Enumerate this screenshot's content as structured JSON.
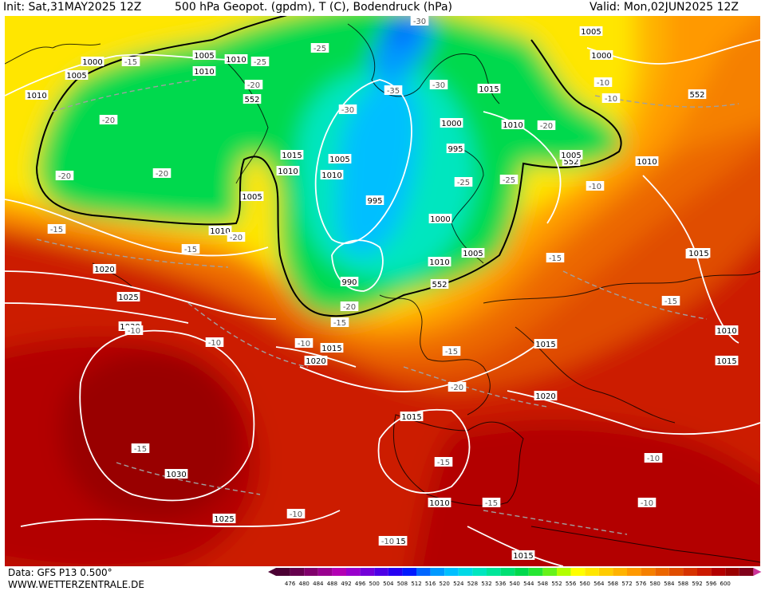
{
  "header": {
    "init": "Init: Sat,31MAY2025 12Z",
    "title": "500 hPa Geopot. (gpdm), T (C), Bodendruck (hPa)",
    "valid": "Valid: Mon,02JUN2025 12Z"
  },
  "footer": {
    "data_source": "Data: GFS P13 0.500°",
    "website": "WWW.WETTERZENTRALE.DE"
  },
  "colors": {
    "scale": [
      "#4b0033",
      "#66004d",
      "#80006b",
      "#99008f",
      "#b300b3",
      "#9900cc",
      "#7300d9",
      "#4d00e6",
      "#2600f2",
      "#0019ff",
      "#0066ff",
      "#0099ff",
      "#00bfff",
      "#00d9e6",
      "#00e6bf",
      "#00e699",
      "#00e073",
      "#00d94d",
      "#26e633",
      "#66f21a",
      "#b3ff00",
      "#ffff00",
      "#ffe600",
      "#ffcc00",
      "#ffb300",
      "#ff9900",
      "#f58000",
      "#eb6600",
      "#e04d00",
      "#d63300",
      "#cc1a00",
      "#b30000",
      "#990000",
      "#80001a"
    ],
    "isobar": "#ffffff",
    "temperature_line": "#a0a0a0",
    "geopotential_552_line": "#000000"
  },
  "scale_labels": [
    "476",
    "480",
    "484",
    "488",
    "492",
    "496",
    "500",
    "504",
    "508",
    "512",
    "516",
    "520",
    "524",
    "528",
    "532",
    "536",
    "540",
    "544",
    "548",
    "552",
    "556",
    "560",
    "564",
    "568",
    "572",
    "576",
    "580",
    "584",
    "588",
    "592",
    "596",
    "600"
  ],
  "pressure_labels": [
    "1005",
    "1000",
    "1005",
    "1010",
    "1010",
    "1010",
    "552",
    "1015",
    "1010",
    "1005",
    "1000",
    "552",
    "1005",
    "1010",
    "1020",
    "1025",
    "1030",
    "1015",
    "1020",
    "1030",
    "1025",
    "1015",
    "995",
    "990",
    "1000",
    "1010",
    "552",
    "1005",
    "1015",
    "1010",
    "1015",
    "1020",
    "1015",
    "1005",
    "1000",
    "995",
    "1010",
    "1005",
    "552",
    "1010",
    "1015",
    "1010",
    "1015",
    "1015",
    "1015",
    "1010"
  ],
  "temperature_labels": [
    "-30",
    "-25",
    "-15",
    "-25",
    "-20",
    "-20",
    "-20",
    "-30",
    "-35",
    "-30",
    "-25",
    "-20",
    "-20",
    "-15",
    "-15",
    "-25",
    "-20",
    "-10",
    "-10",
    "-10",
    "-20",
    "-15",
    "-15",
    "-20",
    "-15",
    "-15",
    "-15",
    "-15",
    "-10",
    "-15",
    "-10",
    "-10",
    "-10",
    "-10",
    "-10",
    "-10"
  ]
}
